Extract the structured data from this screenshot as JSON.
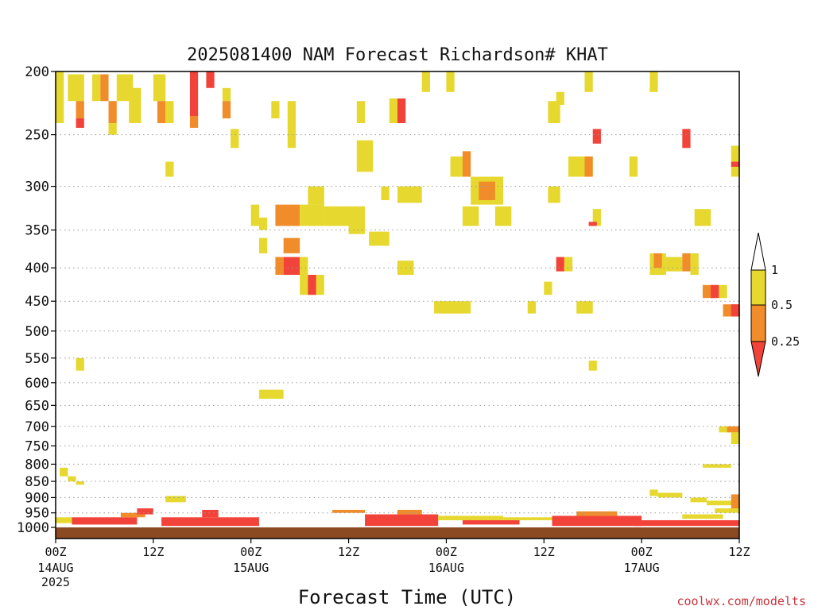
{
  "chart_data": {
    "type": "heatmap",
    "title": "2025081400 NAM Forecast Richardson# KHAT",
    "xlabel": "Forecast Time (UTC)",
    "ylabel": "",
    "x_range_hours": [
      0,
      84
    ],
    "y_range_hpa": [
      1000,
      200
    ],
    "y_scale": "log-pressure",
    "grid": "dotted horizontal",
    "y_ticks": [
      200,
      250,
      300,
      350,
      400,
      450,
      500,
      550,
      600,
      650,
      700,
      750,
      800,
      850,
      900,
      950,
      1000
    ],
    "x_ticks": [
      {
        "hour": 0,
        "label": "00Z",
        "sub": "14AUG",
        "sub2": "2025"
      },
      {
        "hour": 12,
        "label": "12Z",
        "sub": "",
        "sub2": ""
      },
      {
        "hour": 24,
        "label": "00Z",
        "sub": "15AUG",
        "sub2": ""
      },
      {
        "hour": 36,
        "label": "12Z",
        "sub": "",
        "sub2": ""
      },
      {
        "hour": 48,
        "label": "00Z",
        "sub": "16AUG",
        "sub2": ""
      },
      {
        "hour": 60,
        "label": "12Z",
        "sub": "",
        "sub2": ""
      },
      {
        "hour": 72,
        "label": "00Z",
        "sub": "17AUG",
        "sub2": ""
      },
      {
        "hour": 84,
        "label": "12Z",
        "sub": "",
        "sub2": ""
      }
    ],
    "legend": {
      "placement": "right",
      "labels": [
        "1",
        "0.5",
        "0.25"
      ],
      "colors": {
        "yellow": "#e6d82e",
        "orange": "#f08c2a",
        "red": "#f2433a",
        "white": "#ffffff"
      }
    },
    "ground_color": "#8c4a22",
    "cells": [
      {
        "h0": 0,
        "h1": 1,
        "p0": 200,
        "p1": 240,
        "v": 0.75
      },
      {
        "h0": 1.5,
        "h1": 3.5,
        "p0": 202,
        "p1": 222,
        "v": 0.75
      },
      {
        "h0": 2.5,
        "h1": 3.5,
        "p0": 222,
        "p1": 236,
        "v": 0.3
      },
      {
        "h0": 2.5,
        "h1": 3.5,
        "p0": 236,
        "p1": 244,
        "v": 0.1
      },
      {
        "h0": 4.5,
        "h1": 5.5,
        "p0": 202,
        "p1": 222,
        "v": 0.75
      },
      {
        "h0": 5.5,
        "h1": 6.5,
        "p0": 202,
        "p1": 222,
        "v": 0.3
      },
      {
        "h0": 6.5,
        "h1": 7.5,
        "p0": 222,
        "p1": 240,
        "v": 0.3
      },
      {
        "h0": 6.5,
        "h1": 7.5,
        "p0": 240,
        "p1": 250,
        "v": 0.75
      },
      {
        "h0": 7.5,
        "h1": 9.5,
        "p0": 202,
        "p1": 222,
        "v": 0.75
      },
      {
        "h0": 9,
        "h1": 10.5,
        "p0": 212,
        "p1": 240,
        "v": 0.75
      },
      {
        "h0": 12,
        "h1": 13.5,
        "p0": 202,
        "p1": 222,
        "v": 0.75
      },
      {
        "h0": 12.5,
        "h1": 13.5,
        "p0": 222,
        "p1": 240,
        "v": 0.3
      },
      {
        "h0": 13.5,
        "h1": 14.5,
        "p0": 222,
        "p1": 240,
        "v": 0.75
      },
      {
        "h0": 13.5,
        "h1": 14.5,
        "p0": 275,
        "p1": 290,
        "v": 0.75
      },
      {
        "h0": 16.5,
        "h1": 17.5,
        "p0": 200,
        "p1": 234,
        "v": 0.1
      },
      {
        "h0": 16.5,
        "h1": 17.5,
        "p0": 234,
        "p1": 244,
        "v": 0.3
      },
      {
        "h0": 18.5,
        "h1": 19.5,
        "p0": 200,
        "p1": 212,
        "v": 0.1
      },
      {
        "h0": 20.5,
        "h1": 21.5,
        "p0": 212,
        "p1": 222,
        "v": 0.75
      },
      {
        "h0": 20.5,
        "h1": 21.5,
        "p0": 222,
        "p1": 236,
        "v": 0.3
      },
      {
        "h0": 21.5,
        "h1": 22.5,
        "p0": 245,
        "p1": 262,
        "v": 0.75
      },
      {
        "h0": 26.5,
        "h1": 27.5,
        "p0": 222,
        "p1": 236,
        "v": 0.75
      },
      {
        "h0": 28.5,
        "h1": 29.5,
        "p0": 222,
        "p1": 262,
        "v": 0.75
      },
      {
        "h0": 24,
        "h1": 25,
        "p0": 320,
        "p1": 345,
        "v": 0.75
      },
      {
        "h0": 25,
        "h1": 26,
        "p0": 335,
        "p1": 350,
        "v": 0.75
      },
      {
        "h0": 27,
        "h1": 30,
        "p0": 320,
        "p1": 345,
        "v": 0.3
      },
      {
        "h0": 30,
        "h1": 33,
        "p0": 320,
        "p1": 345,
        "v": 0.75
      },
      {
        "h0": 31,
        "h1": 33,
        "p0": 300,
        "p1": 320,
        "v": 0.75
      },
      {
        "h0": 33,
        "h1": 38,
        "p0": 322,
        "p1": 345,
        "v": 0.75
      },
      {
        "h0": 36,
        "h1": 38,
        "p0": 345,
        "p1": 355,
        "v": 0.75
      },
      {
        "h0": 38.5,
        "h1": 41,
        "p0": 352,
        "p1": 370,
        "v": 0.75
      },
      {
        "h0": 25,
        "h1": 26,
        "p0": 360,
        "p1": 380,
        "v": 0.75
      },
      {
        "h0": 28,
        "h1": 30,
        "p0": 360,
        "p1": 380,
        "v": 0.3
      },
      {
        "h0": 27,
        "h1": 28,
        "p0": 385,
        "p1": 410,
        "v": 0.3
      },
      {
        "h0": 28,
        "h1": 30,
        "p0": 385,
        "p1": 410,
        "v": 0.1
      },
      {
        "h0": 30,
        "h1": 31,
        "p0": 385,
        "p1": 410,
        "v": 0.75
      },
      {
        "h0": 30,
        "h1": 33,
        "p0": 410,
        "p1": 440,
        "v": 0.75
      },
      {
        "h0": 31,
        "h1": 32,
        "p0": 410,
        "p1": 440,
        "v": 0.1
      },
      {
        "h0": 37,
        "h1": 38,
        "p0": 222,
        "p1": 240,
        "v": 0.75
      },
      {
        "h0": 37,
        "h1": 39,
        "p0": 255,
        "p1": 285,
        "v": 0.75
      },
      {
        "h0": 40,
        "h1": 41,
        "p0": 300,
        "p1": 315,
        "v": 0.75
      },
      {
        "h0": 41,
        "h1": 42,
        "p0": 220,
        "p1": 240,
        "v": 0.75
      },
      {
        "h0": 42,
        "h1": 43,
        "p0": 220,
        "p1": 240,
        "v": 0.1
      },
      {
        "h0": 42,
        "h1": 45,
        "p0": 300,
        "p1": 318,
        "v": 0.75
      },
      {
        "h0": 42,
        "h1": 44,
        "p0": 390,
        "p1": 410,
        "v": 0.75
      },
      {
        "h0": 45,
        "h1": 46,
        "p0": 200,
        "p1": 215,
        "v": 0.75
      },
      {
        "h0": 48,
        "h1": 49,
        "p0": 200,
        "p1": 215,
        "v": 0.75
      },
      {
        "h0": 46.5,
        "h1": 51,
        "p0": 450,
        "p1": 470,
        "v": 0.75
      },
      {
        "h0": 48.5,
        "h1": 50,
        "p0": 270,
        "p1": 290,
        "v": 0.75
      },
      {
        "h0": 50,
        "h1": 51,
        "p0": 265,
        "p1": 290,
        "v": 0.3
      },
      {
        "h0": 51,
        "h1": 55,
        "p0": 290,
        "p1": 320,
        "v": 0.75
      },
      {
        "h0": 52,
        "h1": 54,
        "p0": 295,
        "p1": 315,
        "v": 0.3
      },
      {
        "h0": 50,
        "h1": 52,
        "p0": 322,
        "p1": 345,
        "v": 0.75
      },
      {
        "h0": 54,
        "h1": 56,
        "p0": 322,
        "p1": 345,
        "v": 0.75
      },
      {
        "h0": 58,
        "h1": 59,
        "p0": 450,
        "p1": 470,
        "v": 0.75
      },
      {
        "h0": 60,
        "h1": 61,
        "p0": 420,
        "p1": 440,
        "v": 0.75
      },
      {
        "h0": 60.5,
        "h1": 62,
        "p0": 300,
        "p1": 318,
        "v": 0.75
      },
      {
        "h0": 60.5,
        "h1": 62,
        "p0": 222,
        "p1": 240,
        "v": 0.75
      },
      {
        "h0": 61.5,
        "h1": 62.5,
        "p0": 215,
        "p1": 225,
        "v": 0.75
      },
      {
        "h0": 61.5,
        "h1": 62.5,
        "p0": 385,
        "p1": 405,
        "v": 0.1
      },
      {
        "h0": 62.5,
        "h1": 63.5,
        "p0": 385,
        "p1": 405,
        "v": 0.75
      },
      {
        "h0": 63,
        "h1": 66,
        "p0": 270,
        "p1": 290,
        "v": 0.75
      },
      {
        "h0": 65,
        "h1": 66,
        "p0": 270,
        "p1": 290,
        "v": 0.3
      },
      {
        "h0": 64,
        "h1": 66,
        "p0": 450,
        "p1": 470,
        "v": 0.75
      },
      {
        "h0": 65,
        "h1": 66,
        "p0": 200,
        "p1": 215,
        "v": 0.75
      },
      {
        "h0": 66,
        "h1": 67,
        "p0": 245,
        "p1": 258,
        "v": 0.1
      },
      {
        "h0": 66,
        "h1": 67,
        "p0": 325,
        "p1": 345,
        "v": 0.75
      },
      {
        "h0": 65.5,
        "h1": 66.5,
        "p0": 340,
        "p1": 345,
        "v": 0.1
      },
      {
        "h0": 70.5,
        "h1": 71.5,
        "p0": 270,
        "p1": 290,
        "v": 0.75
      },
      {
        "h0": 73,
        "h1": 74,
        "p0": 200,
        "p1": 215,
        "v": 0.75
      },
      {
        "h0": 73,
        "h1": 75,
        "p0": 380,
        "p1": 410,
        "v": 0.75
      },
      {
        "h0": 73.5,
        "h1": 74.5,
        "p0": 380,
        "p1": 400,
        "v": 0.3
      },
      {
        "h0": 75,
        "h1": 77,
        "p0": 385,
        "p1": 405,
        "v": 0.75
      },
      {
        "h0": 77,
        "h1": 78,
        "p0": 380,
        "p1": 405,
        "v": 0.3
      },
      {
        "h0": 78,
        "h1": 79,
        "p0": 380,
        "p1": 410,
        "v": 0.75
      },
      {
        "h0": 77,
        "h1": 78,
        "p0": 245,
        "p1": 262,
        "v": 0.1
      },
      {
        "h0": 78.5,
        "h1": 80.5,
        "p0": 325,
        "p1": 345,
        "v": 0.75
      },
      {
        "h0": 79.5,
        "h1": 81,
        "p0": 425,
        "p1": 445,
        "v": 0.3
      },
      {
        "h0": 80.5,
        "h1": 81.5,
        "p0": 425,
        "p1": 445,
        "v": 0.1
      },
      {
        "h0": 81.5,
        "h1": 82.5,
        "p0": 425,
        "p1": 445,
        "v": 0.75
      },
      {
        "h0": 82,
        "h1": 84,
        "p0": 455,
        "p1": 475,
        "v": 0.3
      },
      {
        "h0": 83,
        "h1": 84,
        "p0": 455,
        "p1": 475,
        "v": 0.1
      },
      {
        "h0": 83,
        "h1": 84,
        "p0": 260,
        "p1": 290,
        "v": 0.75
      },
      {
        "h0": 83,
        "h1": 84,
        "p0": 275,
        "p1": 280,
        "v": 0.1
      },
      {
        "h0": 2.5,
        "h1": 3.5,
        "p0": 550,
        "p1": 575,
        "v": 0.75
      },
      {
        "h0": 65.5,
        "h1": 66.5,
        "p0": 555,
        "p1": 575,
        "v": 0.75
      },
      {
        "h0": 25,
        "h1": 28,
        "p0": 615,
        "p1": 635,
        "v": 0.75
      },
      {
        "h0": 81.5,
        "h1": 84,
        "p0": 700,
        "p1": 715,
        "v": 0.75
      },
      {
        "h0": 82.5,
        "h1": 84,
        "p0": 700,
        "p1": 715,
        "v": 0.3
      },
      {
        "h0": 83,
        "h1": 84,
        "p0": 715,
        "p1": 745,
        "v": 0.75
      },
      {
        "h0": 79.5,
        "h1": 83,
        "p0": 800,
        "p1": 810,
        "v": 0.75
      },
      {
        "h0": 0.5,
        "h1": 1.5,
        "p0": 810,
        "p1": 835,
        "v": 0.75
      },
      {
        "h0": 1.5,
        "h1": 2.5,
        "p0": 835,
        "p1": 850,
        "v": 0.75
      },
      {
        "h0": 2.5,
        "h1": 3.5,
        "p0": 850,
        "p1": 860,
        "v": 0.75
      },
      {
        "h0": 13.5,
        "h1": 16,
        "p0": 895,
        "p1": 915,
        "v": 0.75
      },
      {
        "h0": 73,
        "h1": 74,
        "p0": 875,
        "p1": 895,
        "v": 0.75
      },
      {
        "h0": 74,
        "h1": 77,
        "p0": 885,
        "p1": 900,
        "v": 0.75
      },
      {
        "h0": 78,
        "h1": 80,
        "p0": 900,
        "p1": 915,
        "v": 0.75
      },
      {
        "h0": 80,
        "h1": 84,
        "p0": 910,
        "p1": 925,
        "v": 0.75
      },
      {
        "h0": 0,
        "h1": 2,
        "p0": 965,
        "p1": 985,
        "v": 0.75
      },
      {
        "h0": 2,
        "h1": 10,
        "p0": 965,
        "p1": 990,
        "v": 0.1
      },
      {
        "h0": 8,
        "h1": 11,
        "p0": 950,
        "p1": 965,
        "v": 0.3
      },
      {
        "h0": 10,
        "h1": 12,
        "p0": 935,
        "p1": 955,
        "v": 0.1
      },
      {
        "h0": 13,
        "h1": 25,
        "p0": 965,
        "p1": 995,
        "v": 0.1
      },
      {
        "h0": 18,
        "h1": 20,
        "p0": 940,
        "p1": 965,
        "v": 0.1
      },
      {
        "h0": 21,
        "h1": 24,
        "p0": 975,
        "p1": 990,
        "v": 0.1
      },
      {
        "h0": 34,
        "h1": 38,
        "p0": 940,
        "p1": 950,
        "v": 0.3
      },
      {
        "h0": 38,
        "h1": 47,
        "p0": 955,
        "p1": 995,
        "v": 0.1
      },
      {
        "h0": 42,
        "h1": 45,
        "p0": 940,
        "p1": 955,
        "v": 0.3
      },
      {
        "h0": 47,
        "h1": 55,
        "p0": 960,
        "p1": 975,
        "v": 0.75
      },
      {
        "h0": 50,
        "h1": 57,
        "p0": 975,
        "p1": 990,
        "v": 0.1
      },
      {
        "h0": 55,
        "h1": 62,
        "p0": 965,
        "p1": 975,
        "v": 0.75
      },
      {
        "h0": 61,
        "h1": 72,
        "p0": 960,
        "p1": 995,
        "v": 0.1
      },
      {
        "h0": 64,
        "h1": 69,
        "p0": 945,
        "p1": 960,
        "v": 0.3
      },
      {
        "h0": 71,
        "h1": 84,
        "p0": 975,
        "p1": 995,
        "v": 0.1
      },
      {
        "h0": 77,
        "h1": 82,
        "p0": 955,
        "p1": 970,
        "v": 0.75
      },
      {
        "h0": 81,
        "h1": 84,
        "p0": 935,
        "p1": 950,
        "v": 0.75
      },
      {
        "h0": 83,
        "h1": 84,
        "p0": 890,
        "p1": 935,
        "v": 0.3
      }
    ]
  },
  "credit": "coolwx.com/modelts"
}
